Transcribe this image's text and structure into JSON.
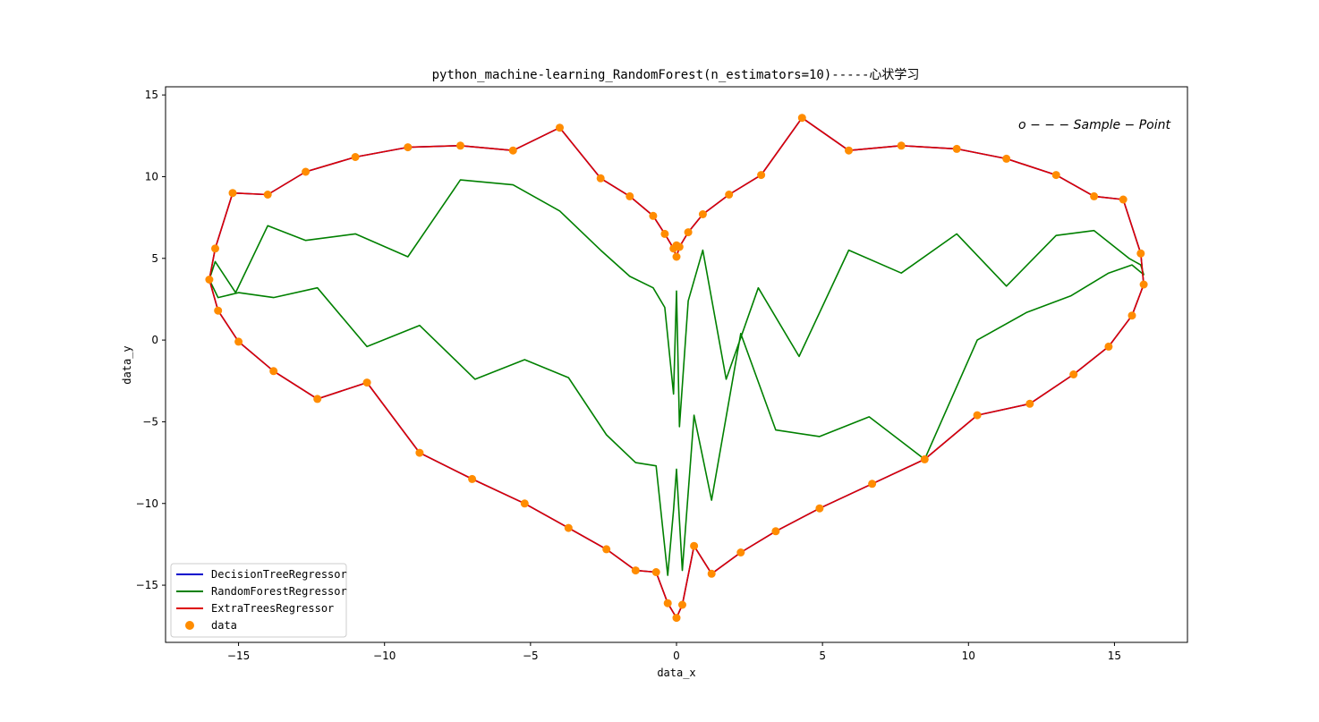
{
  "chart_data": {
    "type": "line",
    "title": "python_machine-learning_RandomForest(n_estimators=10)-----心状学习",
    "xlabel": "data_x",
    "ylabel": "data_y",
    "xlim": [
      -17.5,
      17.5
    ],
    "ylim": [
      -18.5,
      15.5
    ],
    "xticks": [
      -15,
      -10,
      -5,
      0,
      5,
      10,
      15
    ],
    "yticks": [
      -15,
      -10,
      -5,
      0,
      5,
      10,
      15
    ],
    "xtick_labels": [
      "−15",
      "−10",
      "−5",
      "0",
      "5",
      "10",
      "15"
    ],
    "ytick_labels": [
      "−15",
      "−10",
      "−5",
      "0",
      "5",
      "10",
      "15"
    ],
    "grid": false,
    "legend_position": "lower-left",
    "annotation": "o − − − Sample − Point",
    "series": [
      {
        "name": "DecisionTreeRegressor",
        "kind": "line",
        "color": "#0000cc",
        "x": [
          -16.0,
          -15.8,
          -15.2,
          -14.0,
          -12.7,
          -11.0,
          -9.2,
          -7.4,
          -5.6,
          -4.0,
          -2.6,
          -1.6,
          -0.8,
          -0.4,
          -0.1,
          0.0,
          0.1,
          0.4,
          0.9,
          1.8,
          2.9,
          4.3,
          5.9,
          7.7,
          9.6,
          11.3,
          13.0,
          14.3,
          15.3,
          15.9,
          16.0,
          15.6,
          14.8,
          13.6,
          12.1,
          10.3,
          8.5,
          6.7,
          4.9,
          3.4,
          2.2,
          1.2,
          0.6,
          0.2,
          0.0,
          -0.3,
          -0.7,
          -1.4,
          -2.4,
          -3.7,
          -5.2,
          -7.0,
          -8.8,
          -10.6,
          -12.3,
          -13.8,
          -15.0,
          -15.7,
          -16.0
        ],
        "y": [
          3.7,
          5.6,
          9.0,
          8.9,
          10.3,
          11.2,
          11.8,
          11.9,
          11.6,
          13.0,
          9.9,
          8.8,
          7.6,
          6.5,
          5.6,
          5.1,
          5.7,
          6.6,
          7.7,
          8.9,
          10.1,
          13.6,
          11.6,
          11.9,
          11.7,
          11.1,
          10.1,
          8.8,
          8.6,
          5.3,
          3.4,
          1.5,
          -0.4,
          -2.1,
          -3.9,
          -4.6,
          -7.3,
          -8.8,
          -10.3,
          -11.7,
          -13.0,
          -14.3,
          -12.6,
          -16.2,
          -17.0,
          -16.1,
          -14.2,
          -14.1,
          -12.8,
          -11.5,
          -10.0,
          -8.5,
          -6.9,
          -2.6,
          -3.6,
          -1.9,
          -0.1,
          1.8,
          3.7
        ]
      },
      {
        "name": "RandomForestRegressor",
        "kind": "line",
        "color": "#008000",
        "x": [
          -16.0,
          -15.8,
          -15.1,
          -14.0,
          -12.7,
          -11.0,
          -9.2,
          -7.4,
          -5.6,
          -4.0,
          -2.6,
          -1.6,
          -0.8,
          -0.4,
          -0.1,
          0.0,
          0.1,
          0.4,
          0.9,
          1.7,
          2.8,
          4.2,
          5.9,
          7.7,
          9.6,
          11.3,
          13.0,
          14.3,
          15.5,
          15.9,
          16.0,
          15.6,
          14.8,
          13.5,
          12.0,
          10.3,
          8.5,
          6.6,
          4.9,
          3.4,
          2.2,
          1.2,
          0.6,
          0.2,
          0.0,
          -0.1,
          -0.3,
          -0.7,
          -1.4,
          -2.4,
          -3.7,
          -5.2,
          -6.9,
          -8.8,
          -10.6,
          -12.3,
          -13.8,
          -15.0,
          -15.7,
          -16.0
        ],
        "y": [
          3.7,
          4.8,
          2.9,
          7.0,
          6.1,
          6.5,
          5.1,
          9.8,
          9.5,
          7.9,
          5.5,
          3.9,
          3.2,
          2.0,
          -3.3,
          3.0,
          -5.3,
          2.4,
          5.5,
          -2.4,
          3.2,
          -1.0,
          5.5,
          4.1,
          6.5,
          3.3,
          6.4,
          6.7,
          5.0,
          4.6,
          4.0,
          4.6,
          4.1,
          2.7,
          1.7,
          0.0,
          -7.3,
          -4.7,
          -5.9,
          -5.5,
          0.4,
          -9.8,
          -4.6,
          -14.1,
          -7.9,
          -10.4,
          -14.4,
          -7.7,
          -7.5,
          -5.8,
          -2.3,
          -1.2,
          -2.4,
          0.9,
          -0.4,
          3.2,
          2.6,
          2.9,
          2.6,
          3.7
        ]
      },
      {
        "name": "ExtraTreesRegressor",
        "kind": "line",
        "color": "#dd0000",
        "x": [
          -16.0,
          -15.8,
          -15.2,
          -14.0,
          -12.7,
          -11.0,
          -9.2,
          -7.4,
          -5.6,
          -4.0,
          -2.6,
          -1.6,
          -0.8,
          -0.4,
          -0.1,
          0.0,
          0.1,
          0.4,
          0.9,
          1.8,
          2.9,
          4.3,
          5.9,
          7.7,
          9.6,
          11.3,
          13.0,
          14.3,
          15.3,
          15.9,
          16.0,
          15.6,
          14.8,
          13.6,
          12.1,
          10.3,
          8.5,
          6.7,
          4.9,
          3.4,
          2.2,
          1.2,
          0.6,
          0.2,
          0.0,
          -0.3,
          -0.7,
          -1.4,
          -2.4,
          -3.7,
          -5.2,
          -7.0,
          -8.8,
          -10.6,
          -12.3,
          -13.8,
          -15.0,
          -15.7,
          -16.0
        ],
        "y": [
          3.7,
          5.6,
          9.0,
          8.9,
          10.3,
          11.2,
          11.8,
          11.9,
          11.6,
          13.0,
          9.9,
          8.8,
          7.6,
          6.5,
          5.6,
          5.1,
          5.7,
          6.6,
          7.7,
          8.9,
          10.1,
          13.6,
          11.6,
          11.9,
          11.7,
          11.1,
          10.1,
          8.8,
          8.6,
          5.3,
          3.4,
          1.5,
          -0.4,
          -2.1,
          -3.9,
          -4.6,
          -7.3,
          -8.8,
          -10.3,
          -11.7,
          -13.0,
          -14.3,
          -12.6,
          -16.2,
          -17.0,
          -16.1,
          -14.2,
          -14.1,
          -12.8,
          -11.5,
          -10.0,
          -8.5,
          -6.9,
          -2.6,
          -3.6,
          -1.9,
          -0.1,
          1.8,
          3.7
        ]
      },
      {
        "name": "data",
        "kind": "scatter",
        "color": "#ff8c00",
        "x": [
          -16.0,
          -15.8,
          -15.2,
          -14.0,
          -12.7,
          -11.0,
          -9.2,
          -7.4,
          -5.6,
          -4.0,
          -2.6,
          -1.6,
          -0.8,
          -0.4,
          -0.1,
          0.0,
          0.1,
          0.4,
          0.9,
          1.8,
          2.9,
          4.3,
          5.9,
          7.7,
          9.6,
          11.3,
          13.0,
          14.3,
          15.3,
          15.9,
          16.0,
          15.6,
          14.8,
          13.6,
          12.1,
          10.3,
          8.5,
          6.7,
          4.9,
          3.4,
          2.2,
          1.2,
          0.6,
          0.2,
          0.0,
          -0.3,
          -0.7,
          -1.4,
          -2.4,
          -3.7,
          -5.2,
          -7.0,
          -8.8,
          -10.6,
          -12.3,
          -13.8,
          -15.0,
          -15.7,
          0.0
        ],
        "y": [
          3.7,
          5.6,
          9.0,
          8.9,
          10.3,
          11.2,
          11.8,
          11.9,
          11.6,
          13.0,
          9.9,
          8.8,
          7.6,
          6.5,
          5.6,
          5.1,
          5.7,
          6.6,
          7.7,
          8.9,
          10.1,
          13.6,
          11.6,
          11.9,
          11.7,
          11.1,
          10.1,
          8.8,
          8.6,
          5.3,
          3.4,
          1.5,
          -0.4,
          -2.1,
          -3.9,
          -4.6,
          -7.3,
          -8.8,
          -10.3,
          -11.7,
          -13.0,
          -14.3,
          -12.6,
          -16.2,
          -17.0,
          -16.1,
          -14.2,
          -14.1,
          -12.8,
          -11.5,
          -10.0,
          -8.5,
          -6.9,
          -2.6,
          -3.6,
          -1.9,
          -0.1,
          1.8,
          5.8
        ]
      }
    ]
  }
}
